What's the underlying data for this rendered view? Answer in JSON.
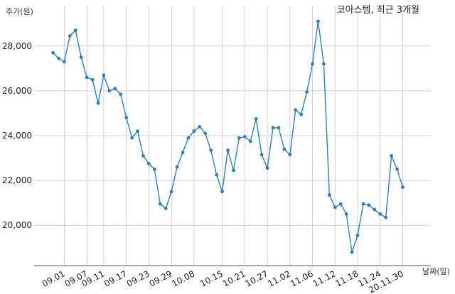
{
  "chart_data": {
    "type": "line",
    "title": "코아스템, 최근 3개월",
    "ylabel": "주가(원)",
    "xlabel": "날짜(일)",
    "ylim": [
      18200,
      29800
    ],
    "yticks": [
      20000,
      22000,
      24000,
      26000,
      28000
    ],
    "ytick_labels": [
      "20,000",
      "22,000",
      "24,000",
      "26,000",
      "28,000"
    ],
    "xtick_labels": [
      "09.01",
      "09.07",
      "09.11",
      "09.17",
      "09.23",
      "09.29",
      "10.08",
      "10.15",
      "10.21",
      "10.27",
      "11.02",
      "11.06",
      "11.12",
      "11.18",
      "11.24",
      "20.11.30"
    ],
    "xtick_index": [
      2,
      6,
      9,
      13,
      17,
      21,
      25,
      30,
      34,
      38,
      42,
      46,
      50,
      54,
      58,
      62
    ],
    "grid": true,
    "line_color": "#2e7fb8",
    "series": [
      {
        "values": [
          27700,
          27450,
          27300,
          28450,
          28700,
          27500,
          26600,
          26500,
          25450,
          26700,
          26000,
          26100,
          25850,
          24800,
          23900,
          24200,
          23100,
          22750,
          22500,
          20950,
          20750,
          21500,
          22600,
          23250,
          23900,
          24200,
          24400,
          24100,
          23350,
          22250,
          21500,
          23350,
          22450,
          23900,
          23950,
          23750,
          24750,
          23150,
          22550,
          24350,
          24350,
          23400,
          23150,
          25150,
          24950,
          25950,
          27200,
          29100,
          27200,
          21350,
          20800,
          20950,
          20500,
          18800,
          19550,
          20950,
          20900,
          20700,
          20500,
          20350,
          23100,
          22500,
          21700
        ]
      }
    ]
  }
}
